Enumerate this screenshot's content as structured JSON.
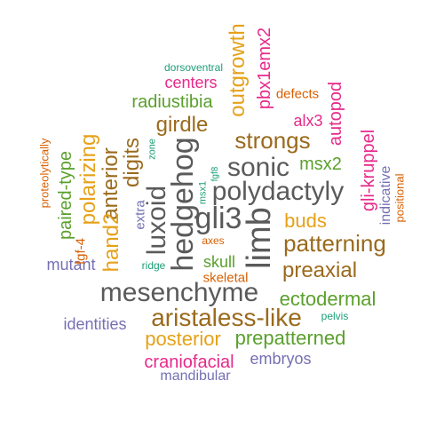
{
  "word_cloud": {
    "colors": {
      "gray": "#5a5a5a",
      "brown": "#9a6a1c",
      "orange": "#d95f02",
      "green": "#5aa02c",
      "gold": "#e6a118",
      "pink": "#e7298a",
      "purple": "#7570b3",
      "teal": "#1b9e77"
    },
    "words": {
      "limb": "limb",
      "gli3": "gli3",
      "hedgehog": "hedgehog",
      "luxoid": "luxoid",
      "polydactyly": "polydactyly",
      "sonic": "sonic",
      "mesenchyme": "mesenchyme",
      "aristaless_like": "aristaless-like",
      "patterning": "patterning",
      "strongs": "strongs",
      "preaxial": "preaxial",
      "girdle": "girdle",
      "digits": "digits",
      "polarizing": "polarizing",
      "anterior": "anterior",
      "hand2": "hand2",
      "outgrowth": "outgrowth",
      "buds": "buds",
      "ectodermal": "ectodermal",
      "posterior": "posterior",
      "prepatterned": "prepatterned",
      "craniofacial": "craniofacial",
      "radiustibia": "radiustibia",
      "paired_type": "paired-type",
      "msx2": "msx2",
      "pbx1emx2": "pbx1emx2",
      "autopod": "autopod",
      "gli_kruppel": "gli-kruppel",
      "alx3": "alx3",
      "centers": "centers",
      "skull": "skull",
      "embryos": "embryos",
      "identities": "identities",
      "mutant": "mutant",
      "mandibular": "mandibular",
      "indicative": "indicative",
      "defects": "defects",
      "skeletal": "skeletal",
      "extra": "extra",
      "fgf_4": "fgf-4",
      "positional": "positional",
      "proteolytically": "proteolytically",
      "dorsoventral": "dorsoventral",
      "pelvis": "pelvis",
      "ridge": "ridge",
      "axes": "axes",
      "zone": "zone",
      "msx1": "msx1",
      "fgf8": "fgf8"
    }
  }
}
